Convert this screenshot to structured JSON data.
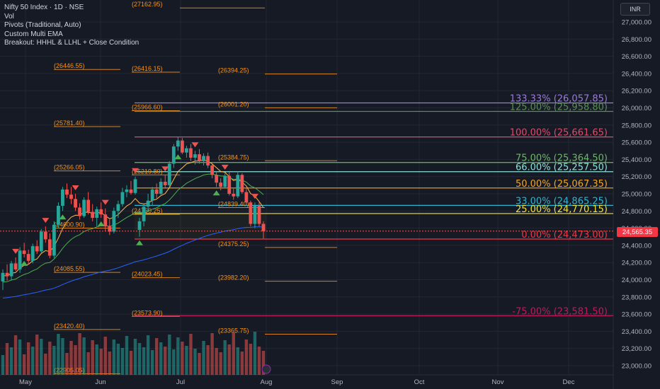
{
  "legend": {
    "title": "Nifty 50 Index · 1D · NSE",
    "line2": "Vol",
    "line3": "Pivots (Traditional, Auto)",
    "line4": "Custom Multi EMA",
    "line5": "Breakout: HHHL & LLHL + Close Condition"
  },
  "currency_button": "INR",
  "last_price": "24,565.35",
  "chart_data": {
    "type": "candlestick",
    "symbol": "Nifty 50 Index",
    "interval": "1D",
    "ylim": [
      22900,
      27450
    ],
    "y_ticks": [
      "27,000.00",
      "26,800.00",
      "26,600.00",
      "26,400.00",
      "26,200.00",
      "26,000.00",
      "25,800.00",
      "25,600.00",
      "25,400.00",
      "25,200.00",
      "25,000.00",
      "24,800.00",
      "24,600.00",
      "24,400.00",
      "24,200.00",
      "24,000.00",
      "23,800.00",
      "23,600.00",
      "23,400.00",
      "23,200.00",
      "23,000.00"
    ],
    "x_ticks": [
      "May",
      "Jun",
      "Jul",
      "Aug",
      "Sep",
      "Oct",
      "Nov",
      "Dec"
    ],
    "fib_levels": [
      {
        "label": "133.33% (26,057.85)",
        "value": 26057.85,
        "color": "#9b7bd8"
      },
      {
        "label": "125.00% (25,958.80)",
        "value": 25958.8,
        "color": "#5a8f54"
      },
      {
        "label": "100.00% (25,661.65)",
        "value": 25661.65,
        "color": "#e04a6a"
      },
      {
        "label": "75.00% (25,364.50)",
        "value": 25364.5,
        "color": "#6fb56a"
      },
      {
        "label": "66.00% (25,257.50)",
        "value": 25257.5,
        "color": "#8ae0d6"
      },
      {
        "label": "50.00% (25,067.35)",
        "value": 25067.35,
        "color": "#f5a623"
      },
      {
        "label": "33.00% (24,865.25)",
        "value": 24865.25,
        "color": "#2bb6d6"
      },
      {
        "label": "25.00% (24,770.15)",
        "value": 24770.15,
        "color": "#f0e040"
      },
      {
        "label": "0.00% (24,473.00)",
        "value": 24473.0,
        "color": "#f23645"
      },
      {
        "label": "-75.00% (23,581.50)",
        "value": 23581.5,
        "color": "#c2185b"
      }
    ],
    "pivot_labels": [
      {
        "text": "(27162.95)",
        "value": 27162.95
      },
      {
        "text": "(26446.55)",
        "value": 26446.55
      },
      {
        "text": "(26416.15)",
        "value": 26416.15
      },
      {
        "text": "(26394.25)",
        "value": 26394.25
      },
      {
        "text": "(25966.60)",
        "value": 25966.6
      },
      {
        "text": "(26001.20)",
        "value": 26001.2
      },
      {
        "text": "(25781.40)",
        "value": 25781.4
      },
      {
        "text": "(25384.75)",
        "value": 25384.75
      },
      {
        "text": "(25266.05)",
        "value": 25266.05
      },
      {
        "text": "(25219.80)",
        "value": 25219.8
      },
      {
        "text": "(24839.40)",
        "value": 24839.4
      },
      {
        "text": "(24760.25)",
        "value": 24760.25
      },
      {
        "text": "(24600.90)",
        "value": 24600.9
      },
      {
        "text": "(24375.25)",
        "value": 24375.25
      },
      {
        "text": "(24085.55)",
        "value": 24085.55
      },
      {
        "text": "(24023.45)",
        "value": 24023.45
      },
      {
        "text": "(23982.20)",
        "value": 23982.2
      },
      {
        "text": "(23573.90)",
        "value": 23573.9
      },
      {
        "text": "(23420.40)",
        "value": 23420.4
      },
      {
        "text": "(23365.75)",
        "value": 23365.75
      },
      {
        "text": "(22905.05)",
        "value": 22905.05
      }
    ],
    "candles": [
      [
        23980,
        24120,
        23880,
        24080
      ],
      [
        24080,
        24180,
        23990,
        24040
      ],
      [
        24040,
        24220,
        24000,
        24190
      ],
      [
        24190,
        24260,
        24100,
        24120
      ],
      [
        24120,
        24380,
        24080,
        24340
      ],
      [
        24340,
        24430,
        24260,
        24300
      ],
      [
        24300,
        24350,
        24180,
        24220
      ],
      [
        24220,
        24420,
        24190,
        24390
      ],
      [
        24390,
        24460,
        24300,
        24330
      ],
      [
        24330,
        24590,
        24310,
        24560
      ],
      [
        24560,
        24620,
        24430,
        24470
      ],
      [
        24470,
        24540,
        24250,
        24280
      ],
      [
        24280,
        24680,
        24250,
        24640
      ],
      [
        24640,
        24900,
        24600,
        24860
      ],
      [
        24860,
        25080,
        24800,
        25050
      ],
      [
        25050,
        25120,
        24950,
        24990
      ],
      [
        24990,
        25080,
        24880,
        24940
      ],
      [
        24940,
        25000,
        24800,
        24840
      ],
      [
        24840,
        24890,
        24700,
        24740
      ],
      [
        24740,
        24960,
        24720,
        24930
      ],
      [
        24930,
        25020,
        24760,
        24790
      ],
      [
        24790,
        24880,
        24680,
        24720
      ],
      [
        24720,
        24850,
        24620,
        24820
      ],
      [
        24820,
        24900,
        24720,
        24760
      ],
      [
        24760,
        24830,
        24560,
        24620
      ],
      [
        24620,
        24700,
        24520,
        24560
      ],
      [
        24560,
        24840,
        24540,
        24800
      ],
      [
        24800,
        24920,
        24720,
        24880
      ],
      [
        24880,
        25070,
        24850,
        25020
      ],
      [
        25020,
        25100,
        24960,
        25050
      ],
      [
        25050,
        25150,
        24990,
        25010
      ],
      [
        25010,
        25200,
        24990,
        25170
      ],
      [
        24580,
        24720,
        24500,
        24680
      ],
      [
        24680,
        24880,
        24620,
        24850
      ],
      [
        24850,
        25000,
        24800,
        24920
      ],
      [
        24920,
        25080,
        24860,
        25050
      ],
      [
        25050,
        25120,
        24950,
        25000
      ],
      [
        25000,
        25180,
        24980,
        25140
      ],
      [
        25140,
        25220,
        25060,
        25100
      ],
      [
        25100,
        25380,
        25080,
        25350
      ],
      [
        25350,
        25580,
        25300,
        25550
      ],
      [
        25550,
        25660,
        25500,
        25620
      ],
      [
        25620,
        25650,
        25460,
        25480
      ],
      [
        25480,
        25560,
        25420,
        25530
      ],
      [
        25530,
        25580,
        25380,
        25420
      ],
      [
        25420,
        25500,
        25340,
        25460
      ],
      [
        25460,
        25520,
        25350,
        25380
      ],
      [
        25380,
        25470,
        25330,
        25440
      ],
      [
        25440,
        25480,
        25300,
        25330
      ],
      [
        25330,
        25360,
        25180,
        25220
      ],
      [
        25220,
        25260,
        25080,
        25130
      ],
      [
        25130,
        25180,
        25040,
        25080
      ],
      [
        25080,
        25240,
        25060,
        25210
      ],
      [
        25210,
        25250,
        24980,
        25000
      ],
      [
        25000,
        25060,
        24930,
        24970
      ],
      [
        24970,
        25260,
        24950,
        25220
      ],
      [
        25220,
        25240,
        25000,
        25020
      ],
      [
        25020,
        25070,
        24880,
        24900
      ],
      [
        24900,
        24920,
        24620,
        24650
      ],
      [
        24650,
        24900,
        24600,
        24860
      ],
      [
        24860,
        24900,
        24620,
        24650
      ],
      [
        24650,
        24680,
        24480,
        24565
      ]
    ],
    "ema_series": [
      {
        "name": "EMA fast",
        "color": "#4caf50"
      },
      {
        "name": "EMA mid",
        "color": "#ffb74d"
      },
      {
        "name": "EMA slow",
        "color": "#2962ff"
      }
    ],
    "colors": {
      "up": "#26a69a",
      "down": "#ef5350",
      "background": "#161a25",
      "grid": "#232733",
      "axis_text": "#b2b5be",
      "pivot": "#f7941d"
    }
  }
}
